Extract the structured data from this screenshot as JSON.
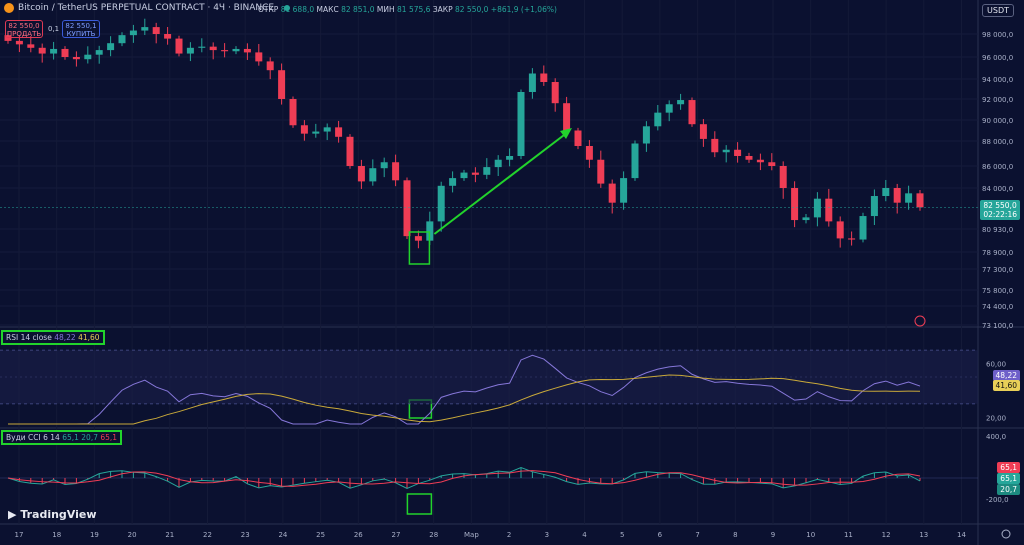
{
  "header": {
    "title": "Bitcoin / TetherUS PERPETUAL CONTRACT · 4Ч · BINANCE",
    "open_label": "ОТКР",
    "open": "81 688,0",
    "high_label": "МАКС",
    "high": "82 851,0",
    "low_label": "МИН",
    "low": "81 575,6",
    "close_label": "ЗАКР",
    "close": "82 550,0",
    "change": "+861,9 (+1,06%)"
  },
  "trade": {
    "sell_price": "82 550,0",
    "sell_label": "ПРОДАТЬ",
    "spread": "0,1",
    "buy_price": "82 550,1",
    "buy_label": "КУПИТЬ"
  },
  "currency": "USDT",
  "brand": "TradingView",
  "colors": {
    "up": "#26a69a",
    "down": "#ef3d55",
    "rsi": "#8677d9",
    "rsi_ma": "#c9a93a",
    "cci": "#26a69a",
    "cci_ma": "#ef3d55",
    "highlight": "#22d32c"
  },
  "chart_data": [
    {
      "type": "candlestick",
      "title": "Bitcoin / TetherUS PERPETUAL CONTRACT · 4Ч · BINANCE",
      "y_ticks": [
        "98 000,0",
        "96 000,0",
        "94 000,0",
        "92 000,0",
        "90 000,0",
        "88 000,0",
        "86 000,0",
        "84 000,0",
        "80 930,0",
        "78 900,0",
        "77 300,0",
        "75 800,0",
        "74 400,0",
        "73 100,0"
      ],
      "x_ticks": [
        "17",
        "18",
        "19",
        "20",
        "21",
        "22",
        "23",
        "24",
        "25",
        "26",
        "27",
        "28",
        "Мар",
        "2",
        "3",
        "4",
        "5",
        "6",
        "7",
        "8",
        "9",
        "10",
        "11",
        "12",
        "13",
        "14"
      ],
      "last_price": "82 550,0",
      "countdown": "02:22:16",
      "closes": [
        97400,
        97100,
        96800,
        96300,
        96700,
        96000,
        95800,
        96200,
        96600,
        97200,
        97900,
        98300,
        98600,
        98000,
        97600,
        96300,
        96800,
        96900,
        96600,
        96500,
        96700,
        96400,
        95600,
        94800,
        92000,
        89500,
        88700,
        88900,
        89300,
        88400,
        86000,
        84600,
        85800,
        86300,
        84700,
        80300,
        79900,
        81500,
        84200,
        84900,
        85400,
        85200,
        85900,
        86500,
        86800,
        92700,
        94500,
        93700,
        91600,
        89000,
        87600,
        86500,
        84400,
        82900,
        84900,
        87800,
        89400,
        90700,
        91500,
        91900,
        89600,
        88200,
        87100,
        87300,
        86800,
        86500,
        86300,
        86000,
        84000,
        81600,
        81800,
        83200,
        81500,
        80100,
        80000,
        81900,
        83400,
        84000,
        82900,
        83600,
        82550
      ],
      "highlight_box_at": "28",
      "arrow": "up"
    },
    {
      "type": "line",
      "title": "RSI 14 close",
      "values_label": [
        "48,22",
        "41,60"
      ],
      "y_ticks": [
        "60,00",
        "20,00"
      ],
      "bands": [
        70,
        50,
        30
      ],
      "series": [
        {
          "name": "RSI"
        },
        {
          "name": "MA"
        }
      ]
    },
    {
      "type": "line",
      "title": "Вуди CCI 6 14",
      "values_label": [
        "65,1",
        "20,7",
        "65,1"
      ],
      "y_ticks": [
        "400,0",
        "-200,0"
      ],
      "badges": [
        "65,1",
        "65,1",
        "20,7"
      ]
    }
  ]
}
